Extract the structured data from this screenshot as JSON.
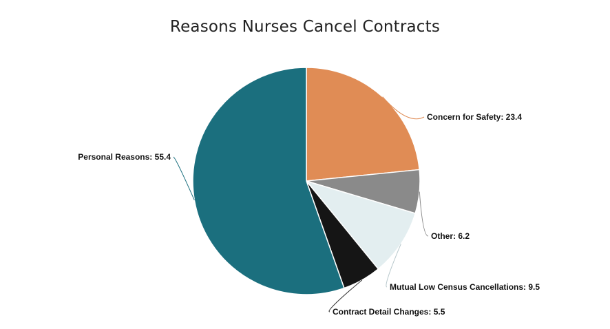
{
  "chart_data": {
    "type": "pie",
    "title": "Reasons Nurses Cancel Contracts",
    "slices": [
      {
        "label": "Concern for Safety",
        "value": 23.4,
        "display": "Concern for Safety: 23.4",
        "color": "#E08C55"
      },
      {
        "label": "Other",
        "value": 6.2,
        "display": "Other: 6.2",
        "color": "#8A8A8A"
      },
      {
        "label": "Mutual Low Census Cancellations",
        "value": 9.5,
        "display": "Mutual Low Census Cancellations: 9.5",
        "color": "#E3EEF0"
      },
      {
        "label": "Contract Detail Changes",
        "value": 5.5,
        "display": "Contract Detail Changes: 5.5",
        "color": "#151515"
      },
      {
        "label": "Personal Reasons",
        "value": 55.4,
        "display": "Personal Reasons: 55.4",
        "color": "#1B6F7E"
      }
    ],
    "start_angle_deg": 0,
    "direction": "clockwise",
    "legend": "none"
  }
}
